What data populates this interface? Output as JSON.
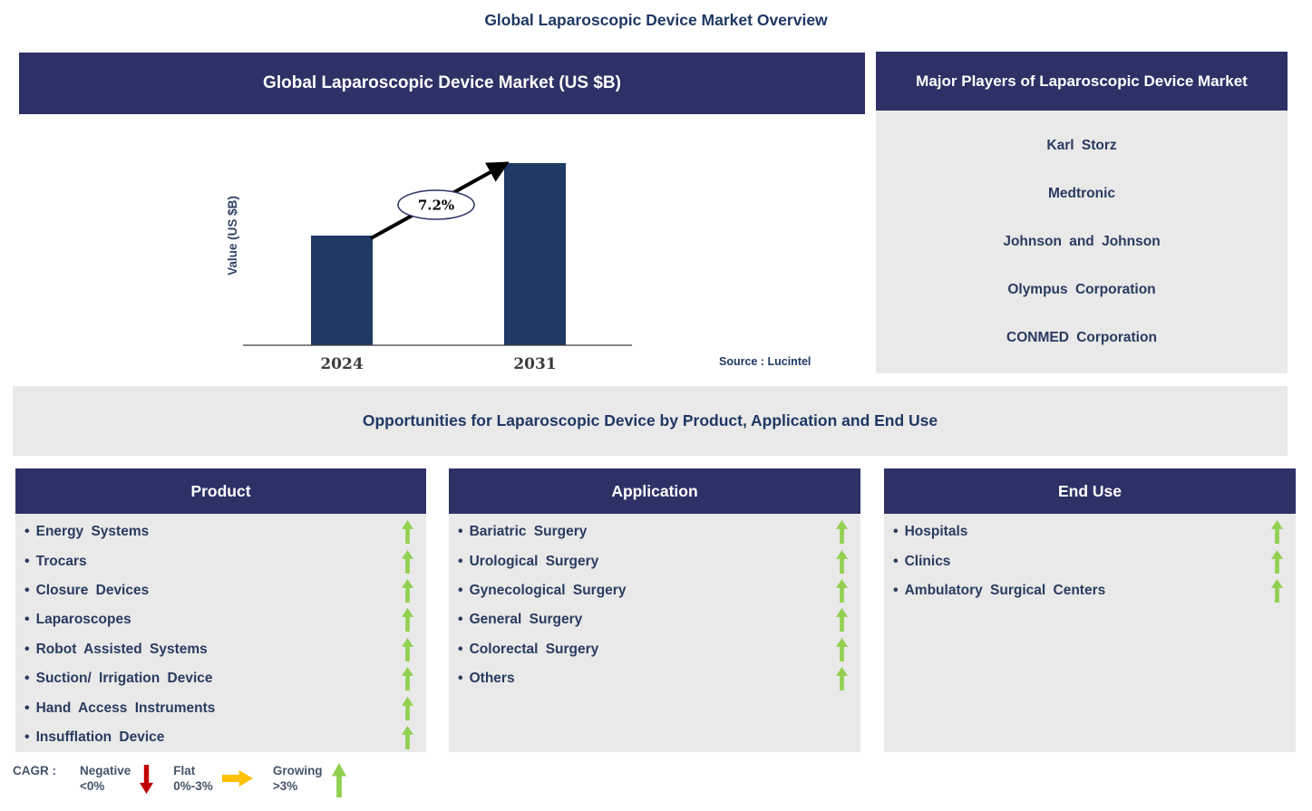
{
  "page_title": "Global Laparoscopic Device Market Overview",
  "chart_panel": {
    "header": "Global Laparoscopic Device Market (US $B)",
    "source": "Source : Lucintel"
  },
  "chart_data": {
    "type": "bar",
    "title": "Global Laparoscopic Device Market (US $B)",
    "ylabel": "Value (US $B)",
    "xlabel": "",
    "categories": [
      "2024",
      "2031"
    ],
    "values_normalized": [
      0.6,
      1.0
    ],
    "value_axis_labeled": false,
    "cagr_label": "7.2%",
    "annotation": "7.2% CAGR growth arrow from 2024 bar to 2031 bar",
    "grid": false,
    "legend_position": "none"
  },
  "players_panel": {
    "header": "Major Players of Laparoscopic Device Market",
    "players": [
      "Karl Storz",
      "Medtronic",
      "Johnson and Johnson",
      "Olympus Corporation",
      "CONMED Corporation"
    ]
  },
  "opportunities_banner": "Opportunities for Laparoscopic Device by Product, Application and End Use",
  "segments": [
    {
      "header": "Product",
      "items": [
        {
          "label": "Energy Systems",
          "trend": "growing"
        },
        {
          "label": "Trocars",
          "trend": "growing"
        },
        {
          "label": "Closure Devices",
          "trend": "growing"
        },
        {
          "label": "Laparoscopes",
          "trend": "growing"
        },
        {
          "label": "Robot Assisted Systems",
          "trend": "growing"
        },
        {
          "label": "Suction/ Irrigation Device",
          "trend": "growing"
        },
        {
          "label": "Hand Access Instruments",
          "trend": "growing"
        },
        {
          "label": "Insufflation Device",
          "trend": "growing"
        }
      ]
    },
    {
      "header": "Application",
      "items": [
        {
          "label": "Bariatric Surgery",
          "trend": "growing"
        },
        {
          "label": "Urological Surgery",
          "trend": "growing"
        },
        {
          "label": "Gynecological Surgery",
          "trend": "growing"
        },
        {
          "label": "General Surgery",
          "trend": "growing"
        },
        {
          "label": "Colorectal Surgery",
          "trend": "growing"
        },
        {
          "label": "Others",
          "trend": "growing"
        }
      ]
    },
    {
      "header": "End Use",
      "items": [
        {
          "label": "Hospitals",
          "trend": "growing"
        },
        {
          "label": "Clinics",
          "trend": "growing"
        },
        {
          "label": "Ambulatory Surgical Centers",
          "trend": "growing"
        }
      ]
    }
  ],
  "legend": {
    "label": "CAGR :",
    "entries": [
      {
        "name": "Negative",
        "range": "<0%",
        "direction": "down",
        "color": "#c00000"
      },
      {
        "name": "Flat",
        "range": "0%-3%",
        "direction": "right",
        "color": "#ffc000"
      },
      {
        "name": "Growing",
        "range": ">3%",
        "direction": "up",
        "color": "#92d050"
      }
    ]
  },
  "colors": {
    "navy_header": "#2d3166",
    "bar": "#1f3a64",
    "title_text": "#1f3864",
    "item_text": "#293b5f",
    "panel_gray": "#e9e9e9",
    "growing": "#92d050",
    "flat": "#ffc000",
    "negative": "#c00000",
    "legend_text": "#44546a"
  }
}
